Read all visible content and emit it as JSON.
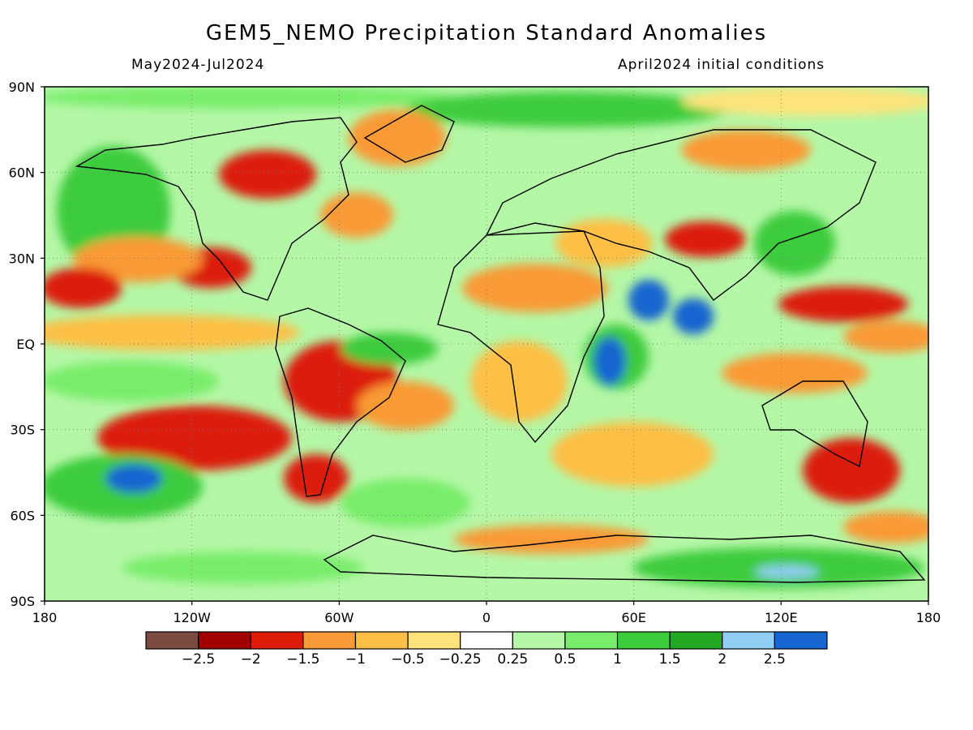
{
  "title": "GEM5_NEMO Precipitation Standard Anomalies",
  "period": "May2024-Jul2024",
  "init": "April2024 initial conditions",
  "lat_labels": [
    "90N",
    "60N",
    "30N",
    "EQ",
    "30S",
    "60S",
    "90S"
  ],
  "lon_labels": [
    "180",
    "120W",
    "60W",
    "0",
    "60E",
    "120E",
    "180"
  ],
  "colorbar": {
    "colors": [
      "#7b4b3f",
      "#a30000",
      "#dc1c08",
      "#f99a36",
      "#fdbf45",
      "#fde37a",
      "#ffffff",
      "#b4f7a6",
      "#78ed6b",
      "#3ccc3c",
      "#23a823",
      "#92cdf5",
      "#1765d0"
    ],
    "labels": [
      "-2.5",
      "-2",
      "-1.5",
      "-1",
      "-0.5",
      "-0.25",
      "0.25",
      "0.5",
      "1",
      "1.5",
      "2",
      "2.5"
    ]
  }
}
